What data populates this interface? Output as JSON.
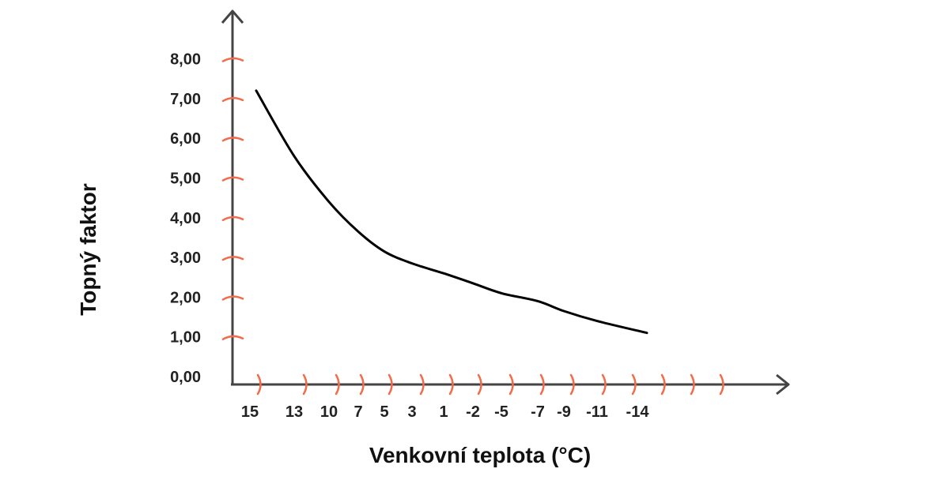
{
  "chart_data": {
    "type": "line",
    "xlabel": "Venkovní teplota (°C)",
    "ylabel": "Topný faktor",
    "y_ticks": [
      "0,00",
      "1,00",
      "2,00",
      "3,00",
      "4,00",
      "5,00",
      "6,00",
      "7,00",
      "8,00"
    ],
    "ylim": [
      0,
      8
    ],
    "x_categories": [
      "15",
      "13",
      "10",
      "7",
      "5",
      "3",
      "1",
      "-2",
      "-5",
      "-7",
      "-9",
      "-11",
      "-14"
    ],
    "series": [
      {
        "x": [
          "15",
          "13",
          "10",
          "7",
          "5",
          "3",
          "1",
          "-2",
          "-5",
          "-7",
          "-9",
          "-11",
          "-14"
        ],
        "values": [
          7.2,
          5.55,
          4.4,
          3.65,
          3.15,
          2.85,
          2.6,
          2.35,
          2.1,
          1.9,
          1.65,
          1.4,
          1.1
        ]
      }
    ],
    "colors": {
      "line": "#000000",
      "axis": "#444444",
      "tick": "#f26b4b"
    },
    "grid": false,
    "legend": "none"
  }
}
